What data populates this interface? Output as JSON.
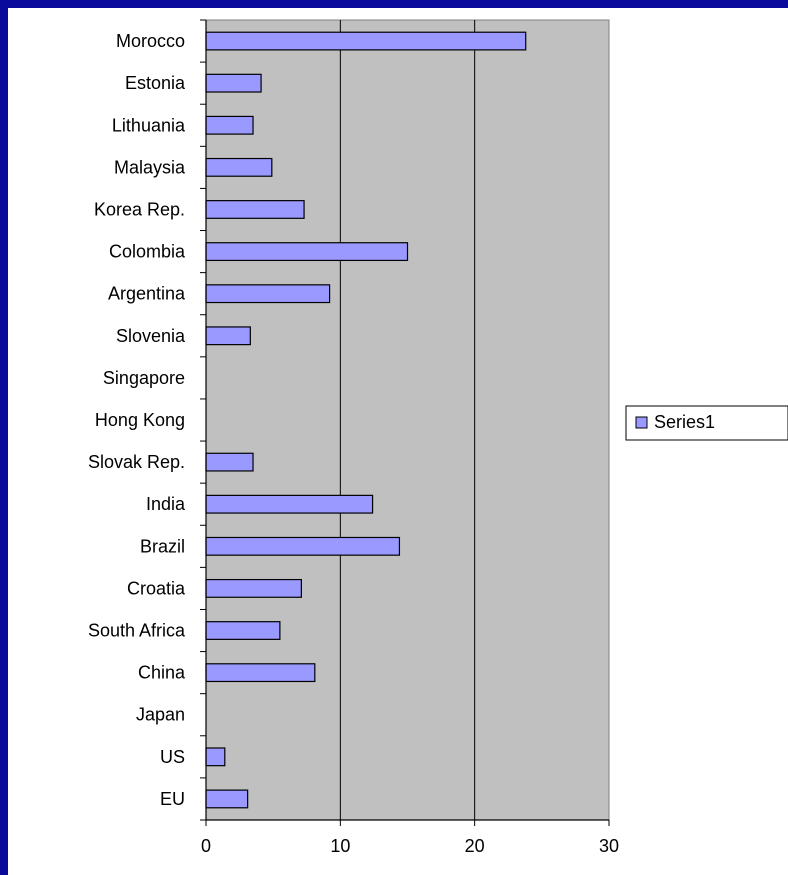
{
  "chart_data": {
    "type": "bar",
    "orientation": "horizontal",
    "categories": [
      "Morocco",
      "Estonia",
      "Lithuania",
      "Malaysia",
      "Korea Rep.",
      "Colombia",
      "Argentina",
      "Slovenia",
      "Singapore",
      "Hong Kong",
      "Slovak Rep.",
      "India",
      "Brazil",
      "Croatia",
      "South Africa",
      "China",
      "Japan",
      "US",
      "EU"
    ],
    "series": [
      {
        "name": "Series1",
        "values": [
          23.8,
          4.1,
          3.5,
          4.9,
          7.3,
          15.0,
          9.2,
          3.3,
          0,
          0,
          3.5,
          12.4,
          14.4,
          7.1,
          5.5,
          8.1,
          0,
          1.4,
          3.1
        ]
      }
    ],
    "xlim": [
      0,
      30
    ],
    "xticks": [
      "0",
      "10",
      "20",
      "30"
    ],
    "grid": true,
    "legend_position": "right",
    "colors": {
      "bar_fill": "#9999ff",
      "bar_stroke": "#000000",
      "plot_bg": "#c0c0c0",
      "frame": "#0a0a9c"
    }
  }
}
